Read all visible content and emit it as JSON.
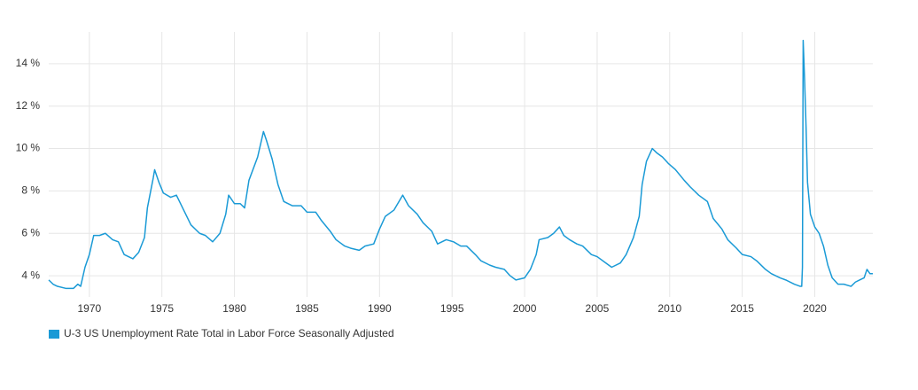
{
  "chart_data": {
    "type": "line",
    "x": [
      1967.2,
      1967.5,
      1967.8,
      1968.4,
      1968.9,
      1969.2,
      1969.4,
      1969.7,
      1970.0,
      1970.3,
      1970.7,
      1971.1,
      1971.6,
      1972.0,
      1972.4,
      1973.0,
      1973.4,
      1973.8,
      1974.0,
      1974.4,
      1974.5,
      1974.8,
      1975.1,
      1975.6,
      1976.0,
      1976.5,
      1977.0,
      1977.6,
      1978.0,
      1978.5,
      1979.0,
      1979.4,
      1979.6,
      1980.0,
      1980.4,
      1980.7,
      1981.0,
      1981.6,
      1982.0,
      1982.2,
      1982.6,
      1983.0,
      1983.4,
      1984.0,
      1984.6,
      1985.0,
      1985.6,
      1986.0,
      1986.6,
      1987.0,
      1987.6,
      1988.0,
      1988.6,
      1989.0,
      1989.6,
      1990.0,
      1990.4,
      1991.0,
      1991.6,
      1992.0,
      1992.6,
      1993.0,
      1993.6,
      1994.0,
      1994.6,
      1995.1,
      1995.6,
      1996.0,
      1996.6,
      1997.0,
      1997.6,
      1998.0,
      1998.6,
      1999.0,
      1999.4,
      2000.0,
      2000.4,
      2000.8,
      2001.0,
      2001.6,
      2002.0,
      2002.4,
      2002.7,
      2003.1,
      2003.6,
      2004.0,
      2004.6,
      2005.0,
      2005.6,
      2006.0,
      2006.6,
      2007.0,
      2007.5,
      2007.9,
      2008.1,
      2008.4,
      2008.8,
      2009.1,
      2009.5,
      2009.9,
      2010.4,
      2011.0,
      2011.4,
      2012.0,
      2012.6,
      2013.0,
      2013.6,
      2014.0,
      2014.6,
      2015.0,
      2015.6,
      2016.0,
      2016.6,
      2017.0,
      2017.6,
      2018.0,
      2018.6,
      2019.0,
      2019.1,
      2019.15,
      2019.2,
      2019.3,
      2019.4,
      2019.5,
      2019.7,
      2020.0,
      2020.3,
      2020.6,
      2020.9,
      2021.2,
      2021.6,
      2022.0,
      2022.5,
      2022.8,
      2023.1,
      2023.4,
      2023.6,
      2023.8,
      2024.0
    ],
    "series": [
      {
        "name": "U-3 US Unemployment Rate Total in Labor Force Seasonally Adjusted",
        "color": "#1a9ad6",
        "values": [
          3.8,
          3.6,
          3.5,
          3.4,
          3.4,
          3.6,
          3.5,
          4.4,
          5.0,
          5.9,
          5.9,
          6.0,
          5.7,
          5.6,
          5.0,
          4.8,
          5.1,
          5.8,
          7.2,
          8.6,
          9.0,
          8.4,
          7.9,
          7.7,
          7.8,
          7.1,
          6.4,
          6.0,
          5.9,
          5.6,
          6.0,
          6.9,
          7.8,
          7.4,
          7.4,
          7.2,
          8.5,
          9.6,
          10.8,
          10.4,
          9.5,
          8.3,
          7.5,
          7.3,
          7.3,
          7.0,
          7.0,
          6.6,
          6.1,
          5.7,
          5.4,
          5.3,
          5.2,
          5.4,
          5.5,
          6.2,
          6.8,
          7.1,
          7.8,
          7.3,
          6.9,
          6.5,
          6.1,
          5.5,
          5.7,
          5.6,
          5.4,
          5.4,
          5.0,
          4.7,
          4.5,
          4.4,
          4.3,
          4.0,
          3.8,
          3.9,
          4.3,
          5.0,
          5.7,
          5.8,
          6.0,
          6.3,
          5.9,
          5.7,
          5.5,
          5.4,
          5.0,
          4.9,
          4.6,
          4.4,
          4.6,
          5.0,
          5.8,
          6.8,
          8.3,
          9.4,
          10.0,
          9.8,
          9.6,
          9.3,
          9.0,
          8.5,
          8.2,
          7.8,
          7.5,
          6.7,
          6.2,
          5.7,
          5.3,
          5.0,
          4.9,
          4.7,
          4.3,
          4.1,
          3.9,
          3.8,
          3.6,
          3.5,
          3.5,
          4.4,
          15.1,
          13.2,
          11.0,
          8.4,
          6.9,
          6.3,
          6.0,
          5.4,
          4.5,
          3.9,
          3.6,
          3.6,
          3.5,
          3.7,
          3.8,
          3.9,
          4.3,
          4.1,
          4.1
        ]
      }
    ],
    "xlim": [
      1967.2,
      2024.0
    ],
    "ylim": [
      3,
      15.5
    ],
    "xticks": [
      1970,
      1975,
      1980,
      1985,
      1990,
      1995,
      2000,
      2005,
      2010,
      2015,
      2020
    ],
    "yticks": [
      {
        "value": 4,
        "label": "4 %"
      },
      {
        "value": 6,
        "label": "6 %"
      },
      {
        "value": 8,
        "label": "8 %"
      },
      {
        "value": 10,
        "label": "10 %"
      },
      {
        "value": 12,
        "label": "12 %"
      },
      {
        "value": 14,
        "label": "14 %"
      }
    ],
    "grid": true,
    "legend": "bottom-left"
  }
}
